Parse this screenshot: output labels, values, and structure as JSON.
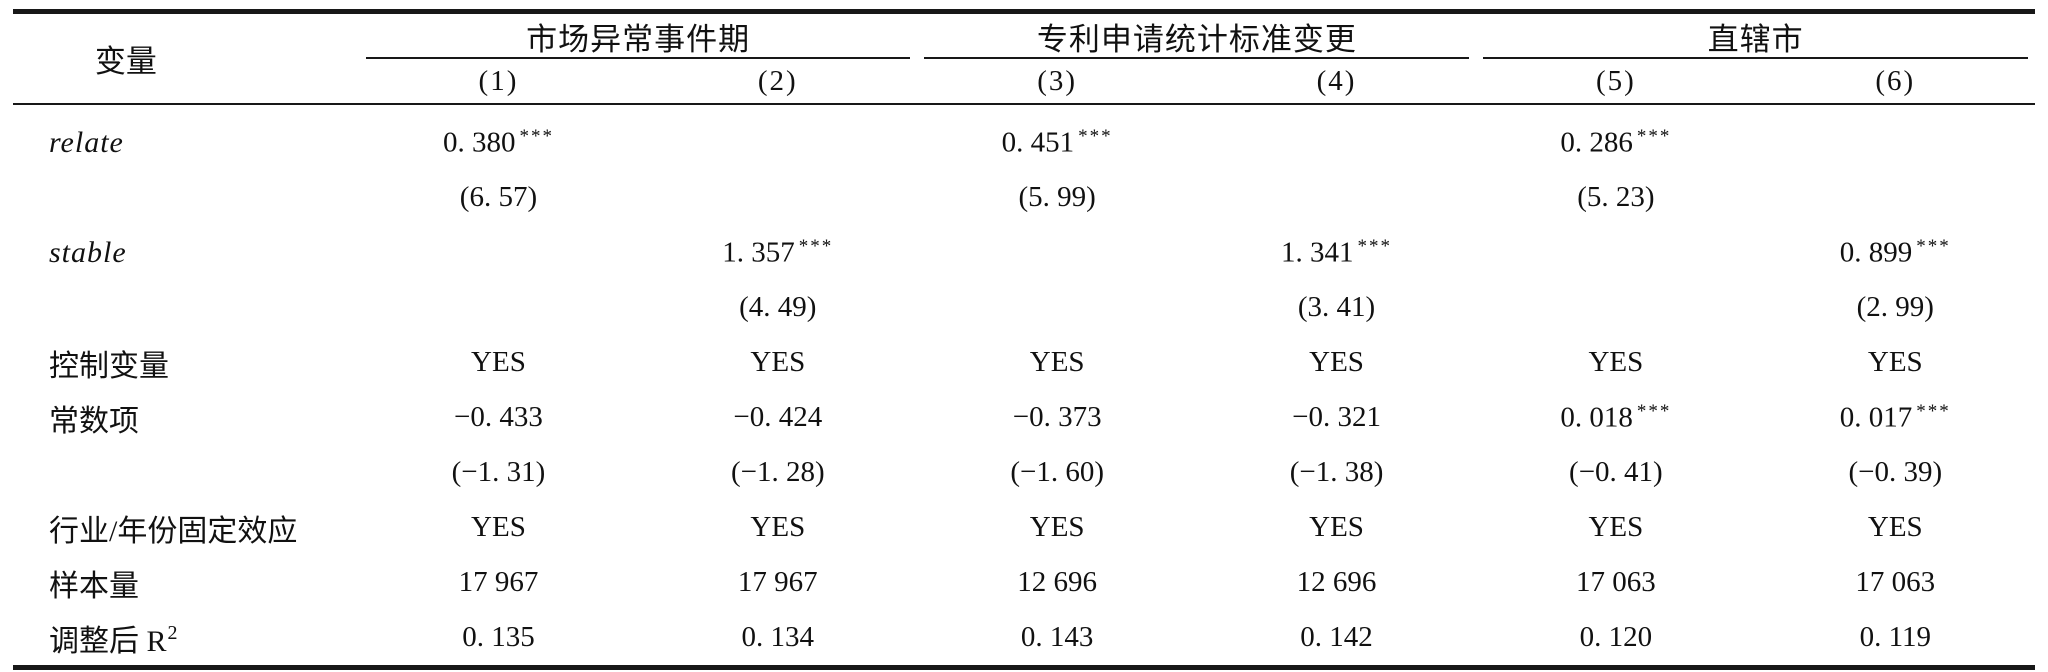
{
  "table": {
    "variable_header": "变量",
    "groups": [
      {
        "label": "市场异常事件期",
        "columns": [
          "(1)",
          "(2)"
        ]
      },
      {
        "label": "专利申请统计标准变更",
        "columns": [
          "(3)",
          "(4)"
        ]
      },
      {
        "label": "直辖市",
        "columns": [
          "(5)",
          "(6)"
        ]
      }
    ],
    "rows": [
      {
        "label": "relate",
        "italic": true,
        "cells": [
          {
            "text": "0. 380",
            "sup": "***"
          },
          null,
          {
            "text": "0. 451",
            "sup": "***"
          },
          null,
          {
            "text": "0. 286",
            "sup": "***"
          },
          null
        ]
      },
      {
        "label": "",
        "cells": [
          {
            "text": "(6. 57)"
          },
          null,
          {
            "text": "(5. 99)"
          },
          null,
          {
            "text": "(5. 23)"
          },
          null
        ]
      },
      {
        "label": "stable",
        "italic": true,
        "cells": [
          null,
          {
            "text": "1. 357",
            "sup": "***"
          },
          null,
          {
            "text": "1. 341",
            "sup": "***"
          },
          null,
          {
            "text": "0. 899",
            "sup": "***"
          }
        ]
      },
      {
        "label": "",
        "cells": [
          null,
          {
            "text": "(4. 49)"
          },
          null,
          {
            "text": "(3. 41)"
          },
          null,
          {
            "text": "(2. 99)"
          }
        ]
      },
      {
        "label": "控制变量",
        "cells": [
          {
            "text": "YES"
          },
          {
            "text": "YES"
          },
          {
            "text": "YES"
          },
          {
            "text": "YES"
          },
          {
            "text": "YES"
          },
          {
            "text": "YES"
          }
        ]
      },
      {
        "label": "常数项",
        "cells": [
          {
            "text": "−0. 433"
          },
          {
            "text": "−0. 424"
          },
          {
            "text": "−0. 373"
          },
          {
            "text": "−0. 321"
          },
          {
            "text": "0. 018",
            "sup": "***"
          },
          {
            "text": "0. 017",
            "sup": "***"
          }
        ]
      },
      {
        "label": "",
        "cells": [
          {
            "text": "(−1. 31)"
          },
          {
            "text": "(−1. 28)"
          },
          {
            "text": "(−1. 60)"
          },
          {
            "text": "(−1. 38)"
          },
          {
            "text": "(−0. 41)"
          },
          {
            "text": "(−0. 39)"
          }
        ]
      },
      {
        "label": "行业/年份固定效应",
        "cells": [
          {
            "text": "YES"
          },
          {
            "text": "YES"
          },
          {
            "text": "YES"
          },
          {
            "text": "YES"
          },
          {
            "text": "YES"
          },
          {
            "text": "YES"
          }
        ]
      },
      {
        "label": "样本量",
        "cells": [
          {
            "text": "17 967"
          },
          {
            "text": "17 967"
          },
          {
            "text": "12 696"
          },
          {
            "text": "12 696"
          },
          {
            "text": "17 063"
          },
          {
            "text": "17 063"
          }
        ]
      },
      {
        "label": "调整后 R",
        "label_sup": "2",
        "cells": [
          {
            "text": "0. 135"
          },
          {
            "text": "0. 134"
          },
          {
            "text": "0. 143"
          },
          {
            "text": "0. 142"
          },
          {
            "text": "0. 120"
          },
          {
            "text": "0. 119"
          }
        ]
      }
    ]
  }
}
